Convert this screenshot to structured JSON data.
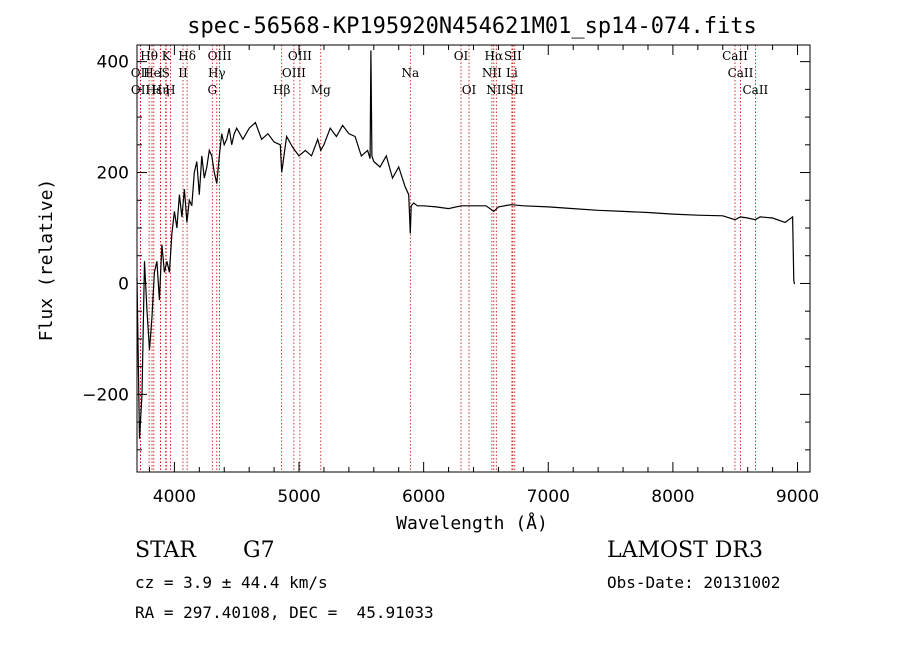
{
  "chart_data": {
    "type": "line",
    "title": "spec-56568-KP195920N454621M01_sp14-074.fits",
    "xlabel": "Wavelength (Å)",
    "ylabel": "Flux (relative)",
    "xlim": [
      3700,
      9100
    ],
    "ylim": [
      -340,
      430
    ],
    "x_ticks": [
      4000,
      5000,
      6000,
      7000,
      8000,
      9000
    ],
    "y_ticks": [
      -200,
      0,
      200,
      400
    ],
    "grid": false,
    "series": [
      {
        "x": [
          3700,
          3720,
          3740,
          3760,
          3780,
          3800,
          3820,
          3840,
          3860,
          3880,
          3900,
          3920,
          3940,
          3960,
          3980,
          4000,
          4020,
          4040,
          4060,
          4080,
          4100,
          4120,
          4140,
          4160,
          4180,
          4200,
          4220,
          4240,
          4260,
          4280,
          4300,
          4320,
          4340,
          4360,
          4380,
          4400,
          4420,
          4440,
          4460,
          4480,
          4500,
          4550,
          4600,
          4650,
          4700,
          4750,
          4800,
          4850,
          4861,
          4900,
          4950,
          5000,
          5050,
          5100,
          5150,
          5175,
          5200,
          5250,
          5300,
          5350,
          5400,
          5450,
          5500,
          5550,
          5570,
          5577,
          5585,
          5600,
          5650,
          5700,
          5750,
          5800,
          5850,
          5880,
          5893,
          5900,
          5920,
          5950,
          6000,
          6100,
          6200,
          6300,
          6400,
          6500,
          6563,
          6600,
          6700,
          6800,
          7000,
          7200,
          7400,
          7600,
          7800,
          8000,
          8200,
          8400,
          8498,
          8542,
          8600,
          8662,
          8700,
          8800,
          8900,
          8960,
          8970,
          8975,
          8980
        ],
        "y": [
          10,
          -280,
          -200,
          40,
          -50,
          -120,
          -60,
          20,
          40,
          -30,
          70,
          20,
          40,
          20,
          90,
          130,
          100,
          160,
          120,
          170,
          110,
          150,
          140,
          200,
          220,
          160,
          230,
          190,
          210,
          240,
          230,
          200,
          180,
          230,
          270,
          250,
          260,
          280,
          250,
          270,
          280,
          260,
          280,
          290,
          260,
          270,
          255,
          250,
          200,
          265,
          245,
          230,
          240,
          230,
          260,
          240,
          250,
          280,
          265,
          285,
          270,
          265,
          230,
          240,
          225,
          420,
          230,
          220,
          210,
          230,
          190,
          210,
          175,
          160,
          90,
          140,
          145,
          140,
          140,
          138,
          135,
          140,
          140,
          140,
          130,
          138,
          142,
          140,
          138,
          135,
          132,
          130,
          128,
          125,
          123,
          122,
          115,
          120,
          118,
          115,
          120,
          118,
          110,
          120,
          5,
          0,
          0
        ]
      }
    ],
    "lines": {
      "row1": [
        {
          "label": "Hθ",
          "x": 3797
        },
        {
          "label": "K",
          "x": 3934
        },
        {
          "label": "Hδ",
          "x": 4102
        },
        {
          "label": "OIII",
          "x": 4363
        },
        {
          "label": "OIII",
          "x": 5007
        },
        {
          "label": "OI",
          "x": 6300
        },
        {
          "label": "Hα",
          "x": 6563
        },
        {
          "label": "SII",
          "x": 6716
        },
        {
          "label": "CaII",
          "x": 8498
        }
      ],
      "row2": [
        {
          "label": "OII",
          "x": 3727
        },
        {
          "label": "He",
          "x": 3820
        },
        {
          "label": "I",
          "x": 3889
        },
        {
          "label": "S",
          "x": 3930
        },
        {
          "label": "II",
          "x": 4069
        },
        {
          "label": "Hγ",
          "x": 4340
        },
        {
          "label": "OIII",
          "x": 4959
        },
        {
          "label": "Na",
          "x": 5893
        },
        {
          "label": "NII",
          "x": 6548
        },
        {
          "label": "Li",
          "x": 6708
        },
        {
          "label": "CaII",
          "x": 8542
        }
      ],
      "row3": [
        {
          "label": "OII",
          "x": 3729
        },
        {
          "label": "Hε",
          "x": 3835
        },
        {
          "label": "Hη",
          "x": 3889
        },
        {
          "label": "H",
          "x": 3968
        },
        {
          "label": "G",
          "x": 4304
        },
        {
          "label": "Hβ",
          "x": 4861
        },
        {
          "label": "Mg",
          "x": 5175
        },
        {
          "label": "OI",
          "x": 6364
        },
        {
          "label": "NII",
          "x": 6583
        },
        {
          "label": "SII",
          "x": 6731
        },
        {
          "label": "CaII",
          "x": 8662
        }
      ]
    }
  },
  "info": {
    "object_class": "STAR",
    "subclass": "G7",
    "survey": "LAMOST DR3",
    "cz": "cz = 3.9 ± 44.4 km/s",
    "obs_date": "Obs-Date: 20131002",
    "coords": "RA = 297.40108, DEC =  45.91033"
  },
  "colors": {
    "line": "#000000",
    "marker": "#cc0000",
    "axis": "#000000"
  }
}
